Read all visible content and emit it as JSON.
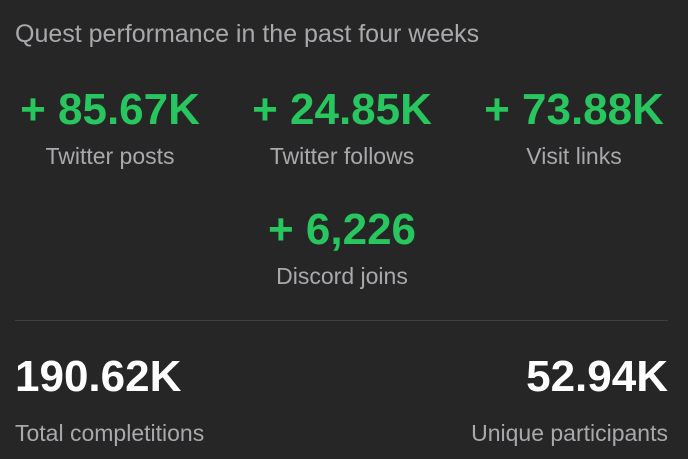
{
  "header": {
    "title": "Quest performance in the past four weeks"
  },
  "stats": [
    {
      "value": "+ 85.67K",
      "label": "Twitter posts"
    },
    {
      "value": "+ 24.85K",
      "label": "Twitter follows"
    },
    {
      "value": "+ 73.88K",
      "label": "Visit links"
    },
    {
      "value": "+ 6,226",
      "label": "Discord joins"
    }
  ],
  "totals": [
    {
      "value": "190.62K",
      "label": "Total completitions"
    },
    {
      "value": "52.94K",
      "label": "Unique participants"
    }
  ]
}
